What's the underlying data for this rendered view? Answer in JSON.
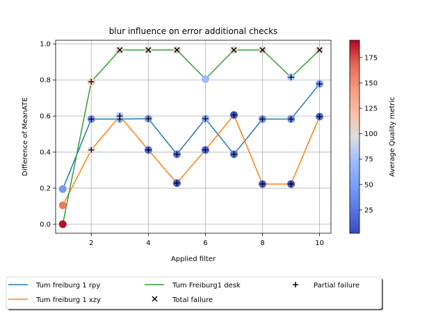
{
  "chart_data": {
    "type": "line",
    "title": "blur influence on error additional checks",
    "xlabel": "Applied filter",
    "ylabel": "Difference of MeanATE",
    "xlim": [
      0.75,
      10.4
    ],
    "ylim": [
      -0.05,
      1.02
    ],
    "xticks": [
      2,
      4,
      6,
      8,
      10
    ],
    "yticks": [
      0.0,
      0.2,
      0.4,
      0.6,
      0.8,
      1.0
    ],
    "grid": true,
    "x": [
      1,
      2,
      3,
      4,
      5,
      6,
      7,
      8,
      9,
      10
    ],
    "series": [
      {
        "name": "Tum freiburg 1 rpy",
        "color": "#1f77b4",
        "values": [
          0.195,
          0.583,
          0.583,
          0.585,
          0.388,
          0.585,
          0.388,
          0.583,
          0.583,
          0.778
        ],
        "quality": [
          45,
          40,
          65,
          45,
          25,
          55,
          20,
          40,
          35,
          50
        ]
      },
      {
        "name": "Tum freiburg 1 xzy",
        "color": "#ff7f0e",
        "values": [
          0.105,
          0.412,
          0.6,
          0.412,
          0.228,
          0.412,
          0.606,
          0.223,
          0.223,
          0.597
        ],
        "quality": [
          160,
          100,
          80,
          20,
          10,
          15,
          10,
          15,
          10,
          20
        ]
      },
      {
        "name": "Tum Freiburg1 desk",
        "color": "#2ca02c",
        "values": [
          0.0,
          0.79,
          0.966,
          0.966,
          0.966,
          0.805,
          0.966,
          0.966,
          0.815,
          0.966
        ],
        "quality": [
          190,
          110,
          105,
          105,
          105,
          70,
          105,
          105,
          75,
          105
        ]
      }
    ],
    "total_failure": [
      {
        "x": 3,
        "y": 0.966
      },
      {
        "x": 4,
        "y": 0.966
      },
      {
        "x": 5,
        "y": 0.966
      },
      {
        "x": 7,
        "y": 0.966
      },
      {
        "x": 8,
        "y": 0.966
      },
      {
        "x": 10,
        "y": 0.966
      }
    ],
    "partial_failure": [
      {
        "x": 2,
        "y": 0.583
      },
      {
        "x": 3,
        "y": 0.583
      },
      {
        "x": 4,
        "y": 0.585
      },
      {
        "x": 5,
        "y": 0.388
      },
      {
        "x": 6,
        "y": 0.585
      },
      {
        "x": 7,
        "y": 0.388
      },
      {
        "x": 8,
        "y": 0.583
      },
      {
        "x": 9,
        "y": 0.583
      },
      {
        "x": 10,
        "y": 0.778
      },
      {
        "x": 2,
        "y": 0.412
      },
      {
        "x": 3,
        "y": 0.6
      },
      {
        "x": 4,
        "y": 0.412
      },
      {
        "x": 5,
        "y": 0.228
      },
      {
        "x": 6,
        "y": 0.412
      },
      {
        "x": 7,
        "y": 0.606
      },
      {
        "x": 8,
        "y": 0.223
      },
      {
        "x": 9,
        "y": 0.223
      },
      {
        "x": 10,
        "y": 0.597
      },
      {
        "x": 2,
        "y": 0.79
      },
      {
        "x": 9,
        "y": 0.815
      }
    ],
    "colorbar": {
      "label": "Average Quality metric",
      "min": 2,
      "max": 192,
      "ticks": [
        25,
        50,
        75,
        100,
        125,
        150,
        175
      ],
      "colormap": "coolwarm"
    },
    "legend": {
      "placement": "bottom",
      "entries": [
        {
          "label": "Tum freiburg 1 rpy",
          "kind": "line",
          "color": "#1f77b4"
        },
        {
          "label": "Tum freiburg 1 xzy",
          "kind": "line",
          "color": "#ff7f0e"
        },
        {
          "label": "Tum Freiburg1 desk",
          "kind": "line",
          "color": "#2ca02c"
        },
        {
          "label": "Total failure",
          "kind": "x-marker",
          "color": "#000000"
        },
        {
          "label": "Partial failure",
          "kind": "plus-marker",
          "color": "#000000"
        }
      ]
    }
  }
}
